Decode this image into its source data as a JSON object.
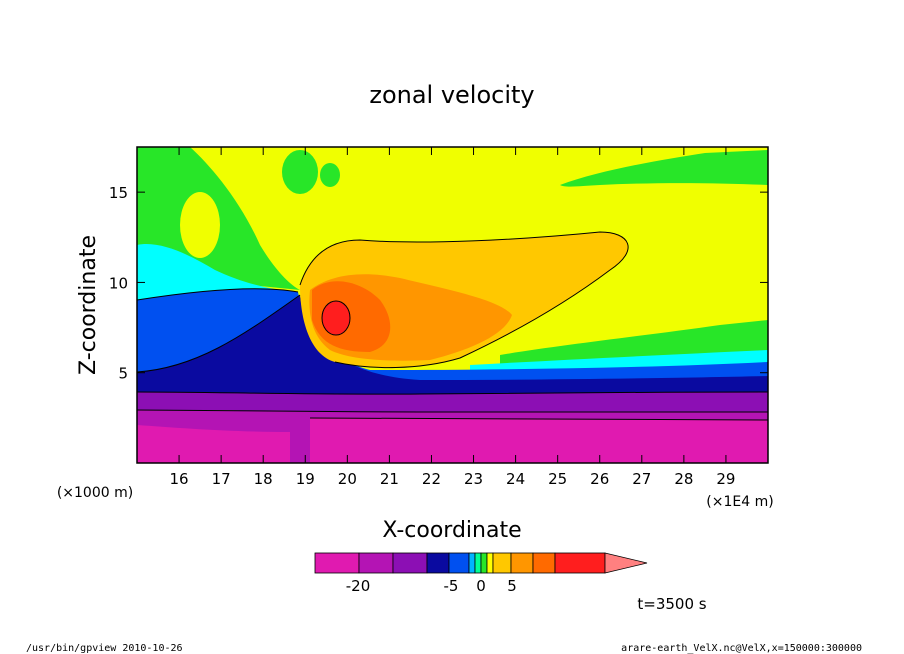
{
  "chart_data": {
    "type": "heatmap",
    "title": "zonal velocity",
    "xlabel": "X-coordinate",
    "ylabel": "Z-coordinate",
    "x_unit_left": "(×1000 m)",
    "x_unit_right": "(×1E4 m)",
    "x_ticks": [
      16,
      17,
      18,
      19,
      20,
      21,
      22,
      23,
      24,
      25,
      26,
      27,
      28,
      29
    ],
    "y_ticks": [
      5,
      10,
      15
    ],
    "xlim": [
      15,
      30
    ],
    "ylim": [
      0,
      17.5
    ],
    "colorbar": {
      "tick_labels": [
        "-20",
        "-5",
        "0",
        "5"
      ],
      "tick_values": [
        -20,
        -5,
        0,
        5
      ],
      "colors": [
        "#e01ab0",
        "#b414b4",
        "#8c0fb4",
        "#0a0aa0",
        "#0050f0",
        "#00b4ff",
        "#00ff96",
        "#28e628",
        "#ffff00",
        "#ffc800",
        "#ff9600",
        "#ff6a00",
        "#ff1e1e",
        "#ff8080"
      ]
    },
    "time_label": "t=3500 s",
    "footer_left": "/usr/bin/gpview  2010-10-26",
    "footer_right": "arare-earth_VelX.nc@VelX,x=150000:300000"
  }
}
